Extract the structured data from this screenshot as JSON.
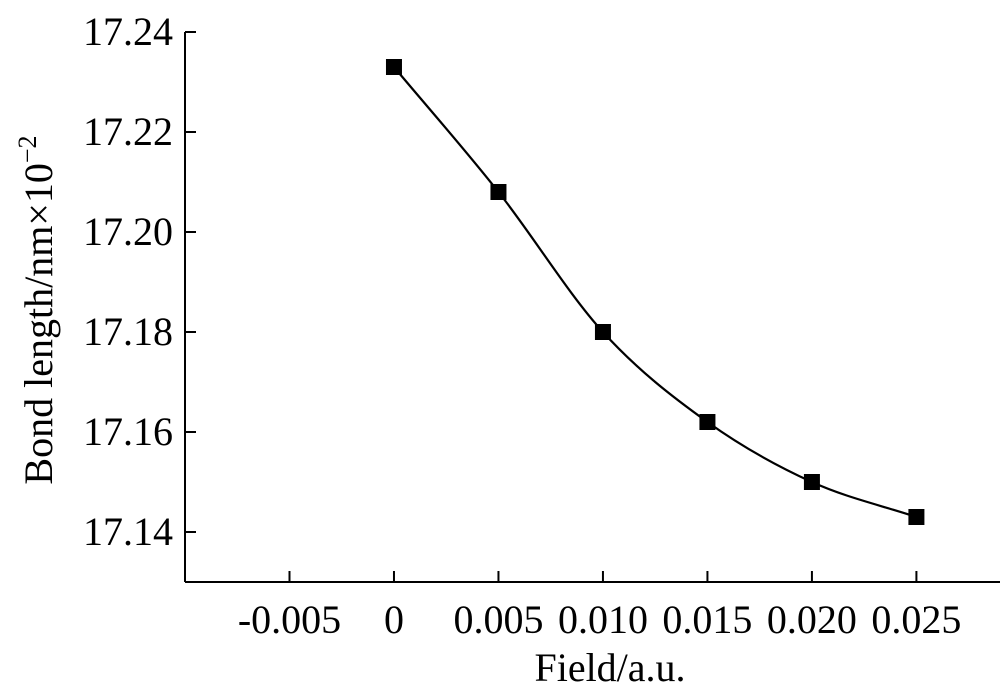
{
  "chart_data": {
    "type": "scatter",
    "xlabel": "Field/a.u.",
    "ylabel_main": "Bond length/nm×10",
    "ylabel_exp": "−2",
    "xlim": [
      -0.01,
      0.029
    ],
    "ylim": [
      17.13,
      17.24
    ],
    "x_ticks": [
      -0.005,
      0,
      0.005,
      0.01,
      0.015,
      0.02,
      0.025
    ],
    "x_tick_labels": [
      "-0.005",
      "0",
      "0.005",
      "0.010",
      "0.015",
      "0.020",
      "0.025"
    ],
    "y_ticks": [
      17.14,
      17.16,
      17.18,
      17.2,
      17.22,
      17.24
    ],
    "y_tick_labels": [
      "17.14",
      "17.16",
      "17.18",
      "17.20",
      "17.22",
      "17.24"
    ],
    "marker": "square",
    "fitted_curve": true,
    "grid": false,
    "series": [
      {
        "x": [
          0,
          0.005,
          0.01,
          0.015,
          0.02,
          0.025
        ],
        "y": [
          17.233,
          17.208,
          17.18,
          17.162,
          17.15,
          17.143
        ]
      }
    ]
  }
}
